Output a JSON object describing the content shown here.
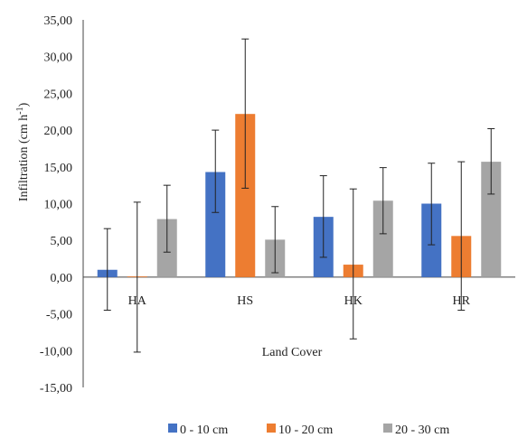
{
  "chart_data": {
    "type": "bar",
    "title": "",
    "xlabel": "Land Cover",
    "ylabel_main": "Infiltration (cm h",
    "ylabel_sup": "-1",
    "ylabel_close": ")",
    "ylim": [
      -15,
      35
    ],
    "yticks": [
      35,
      30,
      25,
      20,
      15,
      10,
      5,
      0,
      -5,
      -10,
      -15
    ],
    "ytick_labels": [
      "35,00",
      "30,00",
      "25,00",
      "20,00",
      "15,00",
      "10,00",
      "5,00",
      "0,00",
      "-5,00",
      "-10,00",
      "-15,00"
    ],
    "categories": [
      "HA",
      "HS",
      "HK",
      "HR"
    ],
    "series": [
      {
        "name": "0 - 10 cm",
        "color": "#4472C4",
        "values": [
          1.0,
          14.3,
          8.2,
          10.0
        ],
        "err_low": [
          -4.5,
          8.8,
          2.7,
          4.4
        ],
        "err_high": [
          6.6,
          20.0,
          13.8,
          15.5
        ]
      },
      {
        "name": "10 - 20 cm",
        "color": "#ED7D31",
        "values": [
          0.1,
          22.2,
          1.7,
          5.6
        ],
        "err_low": [
          -10.2,
          12.1,
          -8.4,
          -4.5
        ],
        "err_high": [
          10.2,
          32.4,
          12.0,
          15.7
        ]
      },
      {
        "name": "20 - 30 cm",
        "color": "#A5A5A5",
        "values": [
          7.9,
          5.1,
          10.4,
          15.7
        ],
        "err_low": [
          3.4,
          0.6,
          5.9,
          11.3
        ],
        "err_high": [
          12.5,
          9.6,
          14.9,
          20.2
        ]
      }
    ],
    "grid": false,
    "legend_position": "bottom"
  }
}
